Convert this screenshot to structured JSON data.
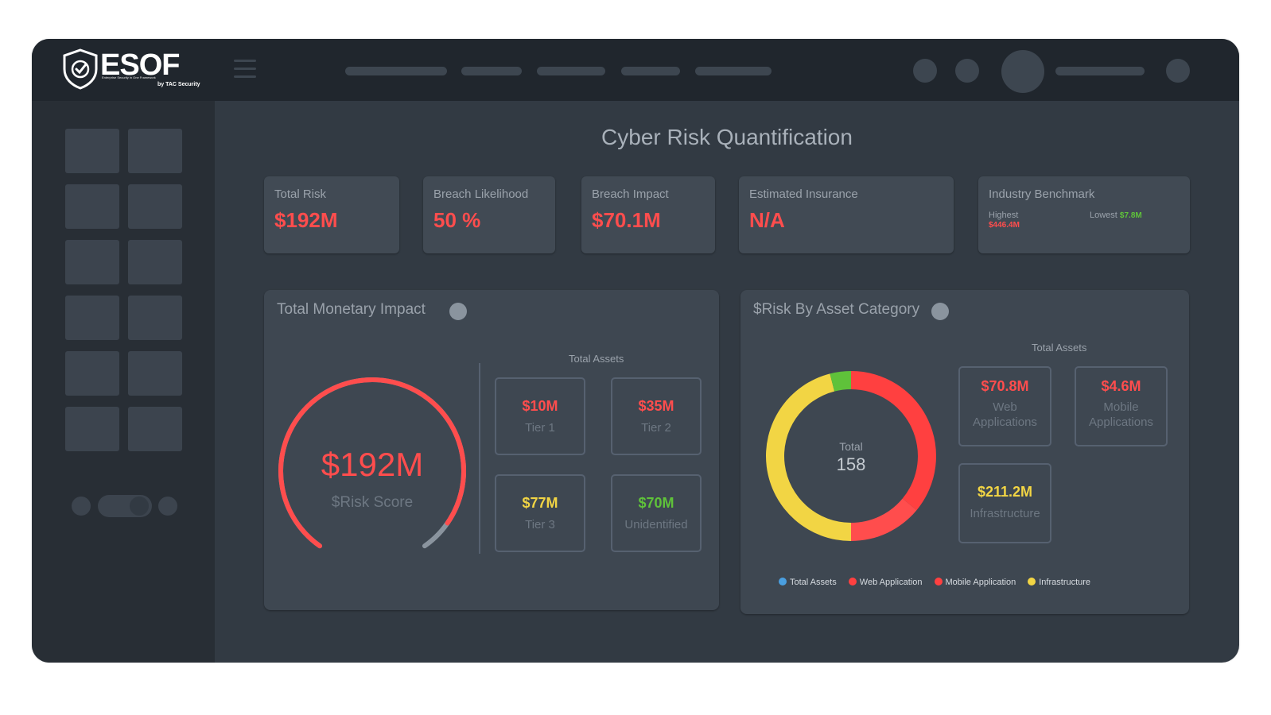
{
  "app": {
    "brand": "ESOF",
    "tagline": "Enterprise Security in One Framework",
    "byline": "by TAC Security"
  },
  "page": {
    "title": "Cyber Risk Quantification"
  },
  "kpis": [
    {
      "label": "Total Risk",
      "value": "$192M"
    },
    {
      "label": "Breach Likelihood",
      "value": "50 %"
    },
    {
      "label": "Breach Impact",
      "value": "$70.1M"
    },
    {
      "label": "Estimated Insurance",
      "value": "N/A"
    }
  ],
  "benchmark": {
    "label": "Industry Benchmark",
    "highest_label": "Highest",
    "highest_value": "$446.4M",
    "lowest_label": "Lowest",
    "lowest_value": "$7.8M"
  },
  "monetary": {
    "title": "Total Monetary Impact",
    "gauge_value": "$192M",
    "gauge_label": "$Risk Score",
    "gauge_fraction": 0.93,
    "assets_label": "Total Assets",
    "tiles": [
      {
        "value": "$10M",
        "label": "Tier 1",
        "color": "#ff4d4d"
      },
      {
        "value": "$35M",
        "label": "Tier 2",
        "color": "#ff4d4d"
      },
      {
        "value": "$77M",
        "label": "Tier 3",
        "color": "#f2d544"
      },
      {
        "value": "$70M",
        "label": "Unidentified",
        "color": "#5fc23a"
      }
    ]
  },
  "category": {
    "title": "$Risk By Asset Category",
    "assets_label": "Total Assets",
    "donut_center_label": "Total",
    "donut_center_value": "158",
    "tiles": [
      {
        "value": "$70.8M",
        "label": "Web Applications",
        "color": "#ff4d4d"
      },
      {
        "value": "$4.6M",
        "label": "Mobile Applications",
        "color": "#ff4d4d"
      },
      {
        "value": "$211.2M",
        "label": "Infrastructure",
        "color": "#f2d544"
      }
    ],
    "legend": [
      {
        "label": "Total Assets",
        "color": "#4a9fe0"
      },
      {
        "label": "Web Application",
        "color": "#ff4040"
      },
      {
        "label": "Mobile Application",
        "color": "#ff4040"
      },
      {
        "label": "Infrastructure",
        "color": "#f2d544"
      }
    ]
  },
  "chart_data": {
    "type": "pie",
    "categories": [
      "Web Application",
      "Mobile Application",
      "Infrastructure",
      "Total Assets"
    ],
    "values": [
      36,
      14,
      46,
      4
    ],
    "colors": [
      "#ff4040",
      "#ff4d4d",
      "#f2d544",
      "#5fc23a"
    ]
  }
}
